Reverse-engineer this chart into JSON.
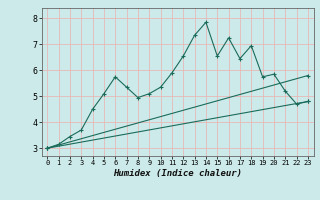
{
  "title": "",
  "xlabel": "Humidex (Indice chaleur)",
  "bg_color": "#cdeaea",
  "grid_color": "#e8b8b8",
  "line_color": "#1a6b5a",
  "xlim": [
    -0.5,
    23.5
  ],
  "ylim": [
    2.7,
    8.4
  ],
  "xticks": [
    0,
    1,
    2,
    3,
    4,
    5,
    6,
    7,
    8,
    9,
    10,
    11,
    12,
    13,
    14,
    15,
    16,
    17,
    18,
    19,
    20,
    21,
    22,
    23
  ],
  "yticks": [
    3,
    4,
    5,
    6,
    7,
    8
  ],
  "line1_x": [
    0,
    1,
    2,
    3,
    4,
    5,
    6,
    7,
    8,
    9,
    10,
    11,
    12,
    13,
    14,
    15,
    16,
    17,
    18,
    19,
    20,
    21,
    22,
    23
  ],
  "line1_y": [
    3.0,
    3.15,
    3.45,
    3.7,
    4.5,
    5.1,
    5.75,
    5.35,
    4.95,
    5.1,
    5.35,
    5.9,
    6.55,
    7.35,
    7.85,
    6.55,
    7.25,
    6.45,
    6.95,
    5.75,
    5.85,
    5.2,
    4.7,
    4.8
  ],
  "line2_x": [
    0,
    23
  ],
  "line2_y": [
    3.0,
    5.8
  ],
  "line3_x": [
    0,
    23
  ],
  "line3_y": [
    3.0,
    4.8
  ]
}
